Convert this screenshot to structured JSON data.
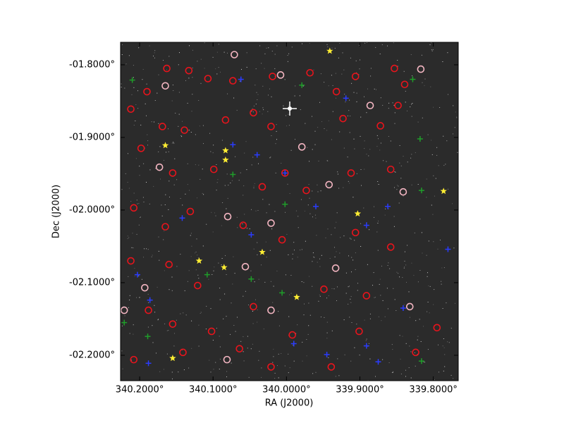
{
  "chart_data": {
    "type": "scatter",
    "xlabel": "RA (J2000)",
    "ylabel": "Dec (J2000)",
    "xlim": [
      340.226,
      339.766
    ],
    "ylim": [
      -2.235,
      -1.769
    ],
    "xticks": [
      {
        "value": 340.2,
        "label": "340.2000°"
      },
      {
        "value": 340.1,
        "label": "340.1000°"
      },
      {
        "value": 340.0,
        "label": "340.0000°"
      },
      {
        "value": 339.9,
        "label": "339.9000°"
      },
      {
        "value": 339.8,
        "label": "339.8000°"
      }
    ],
    "yticks": [
      {
        "value": -1.8,
        "label": "-01.8000°"
      },
      {
        "value": -1.9,
        "label": "-01.9000°"
      },
      {
        "value": -2.0,
        "label": "-02.0000°"
      },
      {
        "value": -2.1,
        "label": "-02.1000°"
      },
      {
        "value": -2.2,
        "label": "-02.2000°"
      }
    ],
    "series": [
      {
        "color": "#e8141c",
        "marker": "circle",
        "x": [
          340.19,
          340.163,
          340.133,
          340.107,
          340.073,
          340.019,
          339.968,
          339.932,
          339.906,
          339.853,
          339.839,
          340.212,
          340.169,
          340.139,
          340.083,
          340.045,
          340.021,
          339.923,
          339.872,
          339.848,
          340.198,
          340.155,
          340.099,
          340.033,
          340.002,
          339.973,
          339.912,
          339.858,
          340.208,
          340.165,
          340.131,
          340.059,
          340.006,
          339.906,
          339.858,
          340.212,
          340.16,
          340.121,
          340.045,
          339.949,
          339.891,
          340.188,
          340.155,
          340.102,
          339.992,
          339.901,
          339.795,
          340.208,
          340.141,
          340.064,
          340.021,
          339.939,
          339.824
        ],
        "y": [
          -1.837,
          -1.805,
          -1.808,
          -1.819,
          -1.822,
          -1.816,
          -1.811,
          -1.837,
          -1.816,
          -1.805,
          -1.827,
          -1.861,
          -1.885,
          -1.89,
          -1.876,
          -1.866,
          -1.885,
          -1.874,
          -1.884,
          -1.856,
          -1.915,
          -1.949,
          -1.944,
          -1.968,
          -1.949,
          -1.973,
          -1.949,
          -1.944,
          -1.997,
          -2.023,
          -2.002,
          -2.021,
          -2.041,
          -2.031,
          -2.051,
          -2.07,
          -2.075,
          -2.104,
          -2.133,
          -2.109,
          -2.118,
          -2.138,
          -2.157,
          -2.167,
          -2.172,
          -2.167,
          -2.162,
          -2.206,
          -2.196,
          -2.191,
          -2.216,
          -2.216,
          -2.196
        ]
      },
      {
        "color": "#f4b6c2",
        "marker": "circle",
        "x": [
          340.165,
          340.071,
          340.008,
          339.886,
          339.817,
          339.979,
          340.173,
          339.942,
          339.841,
          340.08,
          340.021,
          340.056,
          339.933,
          340.193,
          340.021,
          339.832,
          340.081,
          340.221
        ],
        "y": [
          -1.829,
          -1.786,
          -1.814,
          -1.856,
          -1.806,
          -1.913,
          -1.941,
          -1.965,
          -1.975,
          -2.009,
          -2.018,
          -2.078,
          -2.08,
          -2.107,
          -2.138,
          -2.133,
          -2.206,
          -2.138
        ]
      },
      {
        "color": "#ffee33",
        "marker": "star",
        "x": [
          339.941,
          340.165,
          340.083,
          340.083,
          339.903,
          339.786,
          340.033,
          340.119,
          340.085,
          339.986,
          340.155
        ],
        "y": [
          -1.781,
          -1.911,
          -1.918,
          -1.931,
          -2.005,
          -1.974,
          -2.058,
          -2.07,
          -2.079,
          -2.12,
          -2.204
        ]
      },
      {
        "color": "#2a3cff",
        "marker": "cross",
        "x": [
          340.062,
          339.919,
          340.073,
          340.04,
          340.002,
          339.96,
          339.891,
          339.862,
          340.142,
          340.048,
          339.78,
          340.203,
          340.186,
          339.99,
          339.945,
          339.891,
          339.875,
          340.188,
          339.841
        ],
        "y": [
          -1.82,
          -1.846,
          -1.91,
          -1.924,
          -1.949,
          -1.995,
          -2.021,
          -1.995,
          -2.011,
          -2.034,
          -2.054,
          -2.089,
          -2.124,
          -2.184,
          -2.199,
          -2.187,
          -2.209,
          -2.211,
          -2.135
        ]
      },
      {
        "color": "#1f9e2a",
        "marker": "cross",
        "x": [
          340.21,
          339.979,
          339.828,
          339.818,
          340.073,
          340.002,
          339.816,
          340.108,
          340.048,
          340.006,
          340.189,
          339.816,
          340.221
        ],
        "y": [
          -1.821,
          -1.828,
          -1.82,
          -1.902,
          -1.951,
          -1.992,
          -1.973,
          -2.089,
          -2.095,
          -2.114,
          -2.174,
          -2.208,
          -2.155
        ]
      }
    ]
  }
}
